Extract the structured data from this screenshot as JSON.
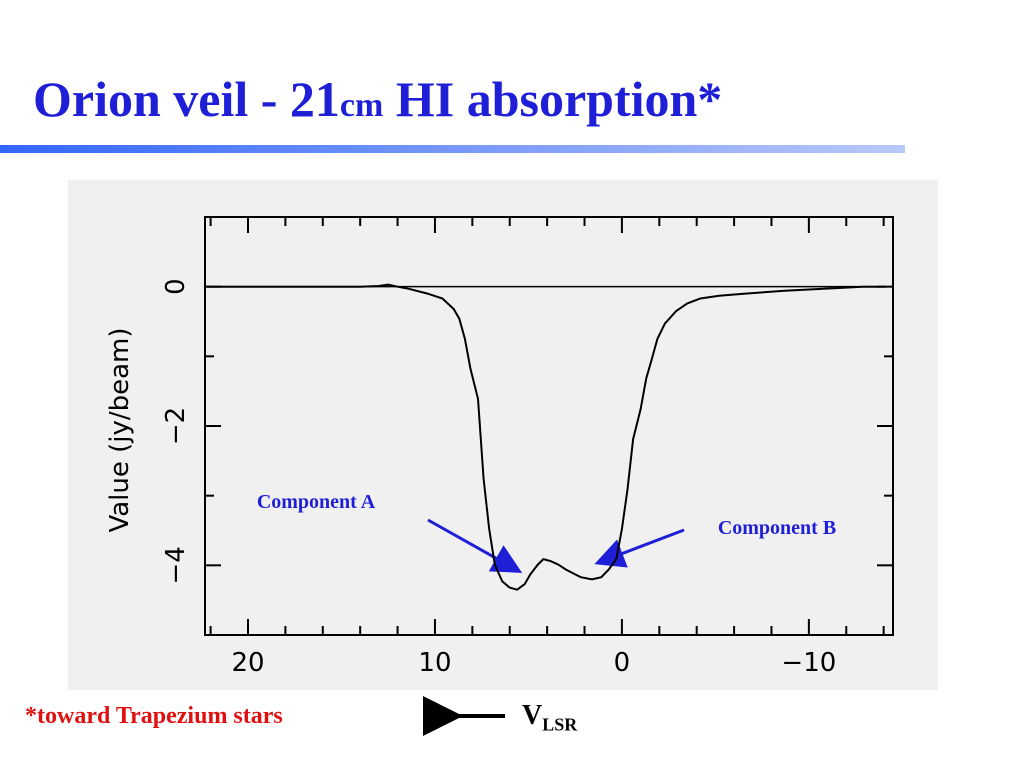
{
  "slide": {
    "title_parts": [
      "Orion veil - 21",
      "cm",
      " HI absorption*"
    ],
    "footnote": "*toward Trapezium stars",
    "axis_note": {
      "main": "V",
      "sub": "LSR"
    }
  },
  "chart_data": {
    "type": "line",
    "ylabel": "Value (jy/beam)",
    "x": [
      22.2,
      20,
      18,
      16,
      14,
      13,
      12.5,
      12,
      11.4,
      10.4,
      9.6,
      9.0,
      8.7,
      8.4,
      8.1,
      7.7,
      7.4,
      7.1,
      6.8,
      6.4,
      6.0,
      5.6,
      5.2,
      4.9,
      4.5,
      4.2,
      3.8,
      3.4,
      3.0,
      2.5,
      2.2,
      1.6,
      1.1,
      0.7,
      0.3,
      0.0,
      -0.3,
      -0.6,
      -1.0,
      -1.3,
      -1.6,
      -1.9,
      -2.3,
      -2.9,
      -3.5,
      -4.2,
      -5.2,
      -6.6,
      -8.7,
      -10.8,
      -12.9,
      -14.1
    ],
    "series": [
      {
        "color": "#000000",
        "values": [
          0,
          0,
          0,
          0,
          0,
          0.01,
          0.03,
          0,
          -0.03,
          -0.1,
          -0.17,
          -0.32,
          -0.46,
          -0.75,
          -1.18,
          -1.61,
          -2.76,
          -3.48,
          -3.99,
          -4.23,
          -4.32,
          -4.35,
          -4.27,
          -4.13,
          -3.99,
          -3.91,
          -3.94,
          -3.99,
          -4.06,
          -4.13,
          -4.17,
          -4.2,
          -4.17,
          -4.06,
          -3.91,
          -3.48,
          -2.91,
          -2.19,
          -1.76,
          -1.32,
          -1.04,
          -0.75,
          -0.53,
          -0.35,
          -0.24,
          -0.17,
          -0.13,
          -0.1,
          -0.06,
          -0.03,
          0,
          0
        ]
      }
    ],
    "xlim": [
      22.3,
      -14.5
    ],
    "ylim": [
      -5,
      1
    ],
    "xticks": [
      20,
      10,
      0,
      {
        "value": -10,
        "label": "−10"
      }
    ],
    "xminorticks": [
      22,
      18,
      16,
      14,
      12,
      8,
      6,
      4,
      2,
      -2,
      -4,
      -6,
      -8,
      -12,
      -14
    ],
    "yticks": [
      0,
      {
        "value": -2,
        "label": "−2"
      },
      {
        "value": -4,
        "label": "−4"
      }
    ],
    "yminorticks": [
      1,
      -1,
      -3,
      -5
    ],
    "hline": 0,
    "annotations": [
      "Component A",
      "Component B"
    ]
  }
}
